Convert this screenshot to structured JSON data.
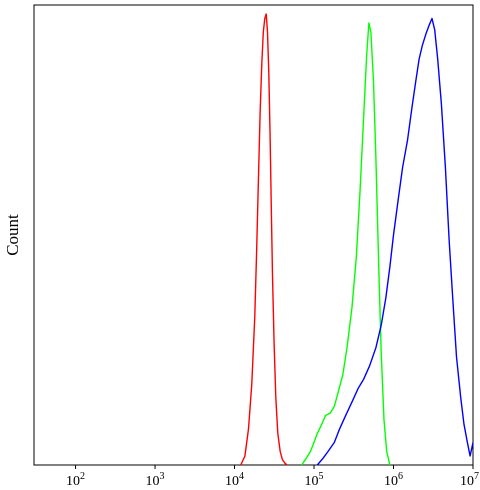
{
  "chart_data": {
    "type": "line",
    "title": "",
    "xlabel": "",
    "ylabel": "Count",
    "x_scale": "log",
    "xlim": [
      30,
      10000000
    ],
    "ylim": [
      0,
      1.02
    ],
    "grid": false,
    "legend": "none",
    "x_ticks": [
      {
        "value": 100,
        "base": "10",
        "exp": "2"
      },
      {
        "value": 1000,
        "base": "10",
        "exp": "3"
      },
      {
        "value": 10000,
        "base": "10",
        "exp": "4"
      },
      {
        "value": 100000,
        "base": "10",
        "exp": "5"
      },
      {
        "value": 1000000,
        "base": "10",
        "exp": "6"
      },
      {
        "value": 10000000,
        "base": "10",
        "exp": "7"
      }
    ],
    "series": [
      {
        "color": "#ff0000",
        "x": [
          12000,
          13500,
          15000,
          16500,
          18000,
          19000,
          20000,
          21000,
          22000,
          23000,
          24000,
          25000,
          26000,
          27000,
          28000,
          29000,
          30000,
          31500,
          33000,
          35000,
          37500,
          40000,
          43000,
          46000
        ],
        "y": [
          0.0,
          0.02,
          0.08,
          0.18,
          0.33,
          0.48,
          0.64,
          0.78,
          0.89,
          0.96,
          0.99,
          1.0,
          0.96,
          0.87,
          0.73,
          0.57,
          0.42,
          0.27,
          0.15,
          0.07,
          0.03,
          0.012,
          0.004,
          0.0
        ]
      },
      {
        "color": "#00ff00",
        "x": [
          70000,
          80000,
          90000,
          100000,
          110000,
          125000,
          140000,
          160000,
          180000,
          200000,
          230000,
          260000,
          300000,
          340000,
          380000,
          420000,
          460000,
          490000,
          520000,
          560000,
          600000,
          650000,
          700000,
          760000,
          820000,
          900000
        ],
        "y": [
          0.0,
          0.015,
          0.03,
          0.05,
          0.07,
          0.09,
          0.11,
          0.115,
          0.13,
          0.16,
          0.2,
          0.26,
          0.35,
          0.46,
          0.61,
          0.77,
          0.91,
          0.98,
          0.96,
          0.85,
          0.68,
          0.45,
          0.25,
          0.1,
          0.03,
          0.0
        ]
      },
      {
        "color": "#0000ff",
        "x": [
          110000,
          130000,
          150000,
          180000,
          210000,
          250000,
          300000,
          360000,
          420000,
          500000,
          600000,
          700000,
          800000,
          900000,
          1000000,
          1150000,
          1300000,
          1500000,
          1700000,
          1900000,
          2100000,
          2300000,
          2550000,
          2800000,
          3050000,
          3300000,
          3600000,
          4000000,
          4500000,
          5000000,
          5600000,
          6200000,
          7000000,
          7700000,
          8500000,
          9200000,
          10000000
        ],
        "y": [
          0.0,
          0.015,
          0.03,
          0.05,
          0.08,
          0.11,
          0.14,
          0.17,
          0.19,
          0.22,
          0.26,
          0.31,
          0.37,
          0.44,
          0.51,
          0.59,
          0.66,
          0.72,
          0.79,
          0.85,
          0.9,
          0.93,
          0.955,
          0.975,
          0.99,
          0.965,
          0.9,
          0.8,
          0.66,
          0.5,
          0.36,
          0.24,
          0.15,
          0.09,
          0.05,
          0.02,
          0.05
        ]
      }
    ]
  }
}
